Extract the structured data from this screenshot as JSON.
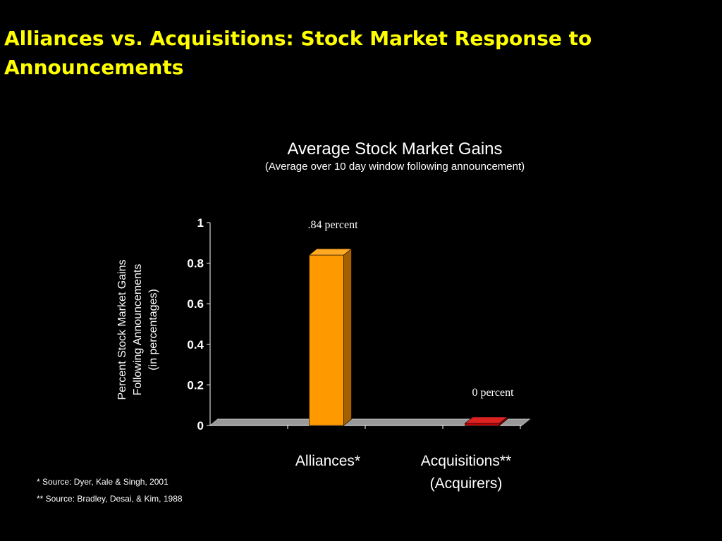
{
  "slide": {
    "title": "Alliances vs. Acquisitions: Stock Market Response to Announcements",
    "footnotes": [
      "* Source: Dyer, Kale & Singh, 2001",
      "** Source: Bradley, Desai, & Kim, 1988"
    ]
  },
  "chart_data": {
    "type": "bar",
    "title": "Average Stock Market Gains",
    "subtitle": "(Average over 10 day window following announcement)",
    "ylabel_lines": [
      "Percent Stock Market Gains",
      "Following  Announcements",
      "(in percentages)"
    ],
    "xlabel": "",
    "categories": [
      [
        "Alliances*"
      ],
      [
        "Acquisitions**",
        "(Acquirers)"
      ]
    ],
    "values": [
      0.84,
      0
    ],
    "data_labels": [
      ".84 percent",
      "0 percent"
    ],
    "ylim": [
      0,
      1
    ],
    "yticks": [
      0,
      0.2,
      0.4,
      0.6,
      0.8,
      1
    ],
    "ytick_labels": [
      "0",
      "0.2",
      "0.4",
      "0.6",
      "0.8",
      "1"
    ],
    "grid": false,
    "style": "3d",
    "colors": {
      "bars": [
        "#ff9900",
        "#cc0000"
      ],
      "bars_side": [
        "#a35f00",
        "#800000"
      ],
      "bars_top": [
        "#ffaa22",
        "#dd2222"
      ],
      "floor": "#999999",
      "axis": "#ffffff",
      "title": "#ffff00"
    }
  }
}
